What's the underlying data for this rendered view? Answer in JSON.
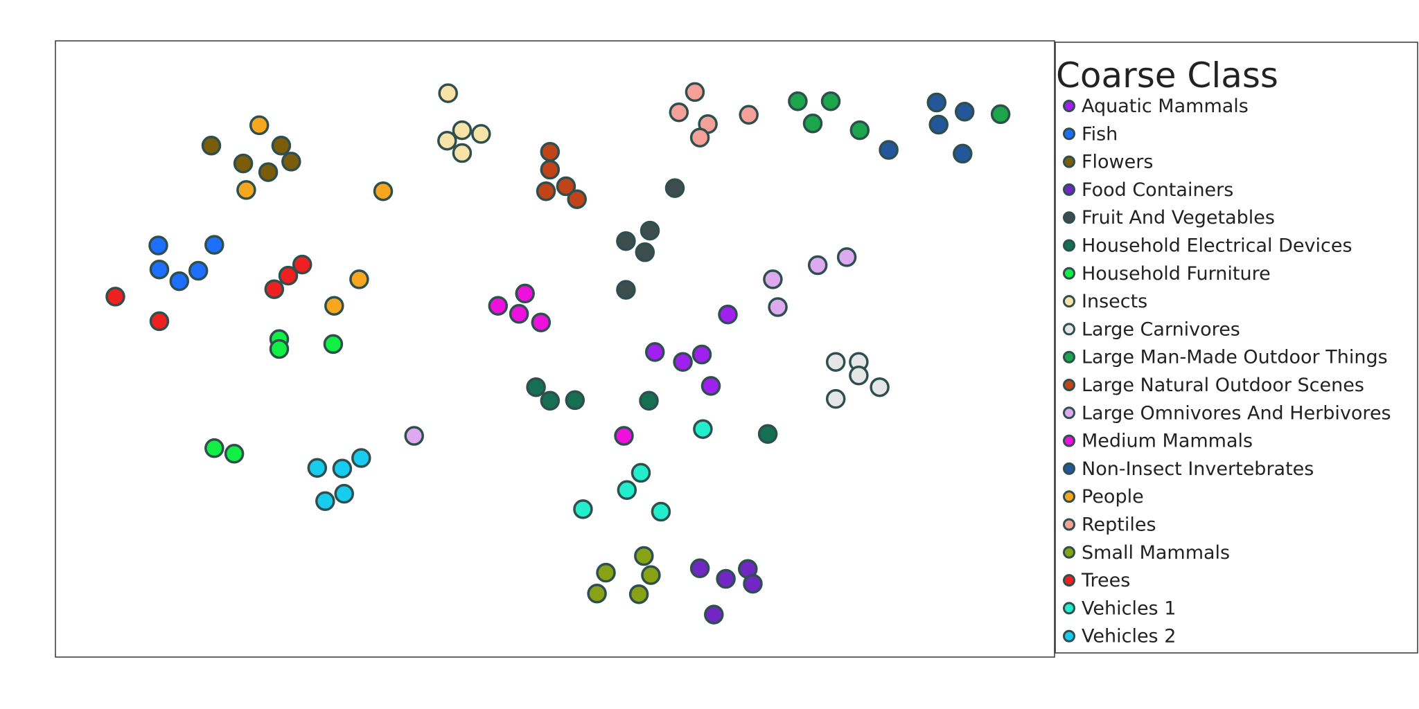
{
  "chart_data": {
    "type": "scatter",
    "title": "",
    "xlabel": "",
    "ylabel": "",
    "xlim": [
      0,
      100
    ],
    "ylim": [
      0,
      100
    ],
    "grid": false,
    "axes_visible": false,
    "legend": {
      "title": "Coarse Class",
      "placement": "right"
    },
    "marker_edge_color": "#2f4f4f",
    "series": [
      {
        "name": "Aquatic Mammals",
        "color": "#a020f0",
        "points": [
          [
            67.3,
            55.6
          ],
          [
            60.0,
            49.5
          ],
          [
            62.8,
            47.9
          ],
          [
            64.7,
            49.1
          ],
          [
            65.6,
            44.0
          ]
        ]
      },
      {
        "name": "Fish",
        "color": "#1e6fff",
        "points": [
          [
            10.3,
            66.8
          ],
          [
            15.9,
            66.9
          ],
          [
            10.4,
            62.9
          ],
          [
            12.4,
            61.0
          ],
          [
            14.3,
            62.7
          ]
        ]
      },
      {
        "name": "Flowers",
        "color": "#7a5c0a",
        "points": [
          [
            15.6,
            83.0
          ],
          [
            22.6,
            83.0
          ],
          [
            18.8,
            80.1
          ],
          [
            21.3,
            78.7
          ],
          [
            23.6,
            80.4
          ]
        ]
      },
      {
        "name": "Food Containers",
        "color": "#7027c4",
        "points": [
          [
            64.5,
            14.4
          ],
          [
            69.3,
            14.3
          ],
          [
            67.1,
            12.7
          ],
          [
            69.8,
            11.9
          ],
          [
            65.9,
            6.9
          ]
        ]
      },
      {
        "name": "Fruit And Vegetables",
        "color": "#3d4d4d",
        "points": [
          [
            62.0,
            76.1
          ],
          [
            59.5,
            69.2
          ],
          [
            57.1,
            67.5
          ],
          [
            59.0,
            65.7
          ],
          [
            57.1,
            59.6
          ]
        ]
      },
      {
        "name": "Household Electrical Devices",
        "color": "#147050",
        "points": [
          [
            48.1,
            43.8
          ],
          [
            49.5,
            41.6
          ],
          [
            52.0,
            41.7
          ],
          [
            59.4,
            41.6
          ],
          [
            71.3,
            36.2
          ]
        ]
      },
      {
        "name": "Household Furniture",
        "color": "#11ee44",
        "points": [
          [
            22.4,
            51.6
          ],
          [
            22.4,
            50.0
          ],
          [
            27.8,
            50.8
          ],
          [
            15.9,
            33.9
          ],
          [
            17.9,
            33.0
          ]
        ]
      },
      {
        "name": "Insects",
        "color": "#f7e3a8",
        "points": [
          [
            39.3,
            91.5
          ],
          [
            40.7,
            85.5
          ],
          [
            42.6,
            84.9
          ],
          [
            39.2,
            83.8
          ],
          [
            40.7,
            81.8
          ]
        ]
      },
      {
        "name": "Large Carnivores",
        "color": "#e6e6e6",
        "points": [
          [
            78.1,
            47.9
          ],
          [
            80.4,
            47.9
          ],
          [
            80.4,
            45.7
          ],
          [
            82.5,
            43.8
          ],
          [
            78.1,
            41.9
          ]
        ]
      },
      {
        "name": "Large Man-Made Outdoor Things",
        "color": "#1da54b",
        "points": [
          [
            74.3,
            90.2
          ],
          [
            77.6,
            90.2
          ],
          [
            75.8,
            86.6
          ],
          [
            80.5,
            85.5
          ],
          [
            94.6,
            88.1
          ]
        ]
      },
      {
        "name": "Large Natural Outdoor Scenes",
        "color": "#c14418",
        "points": [
          [
            49.5,
            82.0
          ],
          [
            49.5,
            79.1
          ],
          [
            49.1,
            75.6
          ],
          [
            51.1,
            76.4
          ],
          [
            52.2,
            74.3
          ]
        ]
      },
      {
        "name": "Large Omnivores And Herbivores",
        "color": "#ddaaf0",
        "points": [
          [
            71.8,
            61.3
          ],
          [
            76.3,
            63.6
          ],
          [
            79.2,
            64.9
          ],
          [
            72.3,
            56.8
          ],
          [
            35.9,
            35.9
          ]
        ]
      },
      {
        "name": "Medium Mammals",
        "color": "#ee11dd",
        "points": [
          [
            47.0,
            59.0
          ],
          [
            44.3,
            57.0
          ],
          [
            46.4,
            55.7
          ],
          [
            48.6,
            54.3
          ],
          [
            56.9,
            35.9
          ]
        ]
      },
      {
        "name": "Non-Insect Invertebrates",
        "color": "#23569a",
        "points": [
          [
            88.2,
            90.0
          ],
          [
            91.0,
            88.5
          ],
          [
            88.4,
            86.4
          ],
          [
            83.4,
            82.3
          ],
          [
            90.8,
            81.7
          ]
        ]
      },
      {
        "name": "People",
        "color": "#f7a620",
        "points": [
          [
            20.4,
            86.3
          ],
          [
            19.1,
            75.8
          ],
          [
            32.8,
            75.6
          ],
          [
            30.4,
            61.3
          ],
          [
            27.9,
            57.0
          ]
        ]
      },
      {
        "name": "Reptiles",
        "color": "#f5a098",
        "points": [
          [
            64.0,
            91.7
          ],
          [
            62.4,
            88.4
          ],
          [
            69.4,
            88.0
          ],
          [
            65.3,
            86.5
          ],
          [
            64.5,
            84.3
          ]
        ]
      },
      {
        "name": "Small Mammals",
        "color": "#88a215",
        "points": [
          [
            58.9,
            16.4
          ],
          [
            55.1,
            13.7
          ],
          [
            59.6,
            13.3
          ],
          [
            54.2,
            10.3
          ],
          [
            58.4,
            10.2
          ]
        ]
      },
      {
        "name": "Trees",
        "color": "#ee2020",
        "points": [
          [
            24.7,
            63.7
          ],
          [
            23.3,
            61.9
          ],
          [
            21.9,
            59.7
          ],
          [
            6.0,
            58.5
          ],
          [
            10.4,
            54.5
          ]
        ]
      },
      {
        "name": "Vehicles 1",
        "color": "#22eecc",
        "points": [
          [
            64.8,
            37.0
          ],
          [
            58.6,
            29.9
          ],
          [
            57.2,
            27.1
          ],
          [
            60.6,
            23.6
          ],
          [
            52.8,
            24.0
          ]
        ]
      },
      {
        "name": "Vehicles 2",
        "color": "#17ccee",
        "points": [
          [
            30.6,
            32.3
          ],
          [
            26.2,
            30.7
          ],
          [
            28.7,
            30.6
          ],
          [
            28.9,
            26.5
          ],
          [
            27.0,
            25.3
          ]
        ]
      }
    ]
  }
}
